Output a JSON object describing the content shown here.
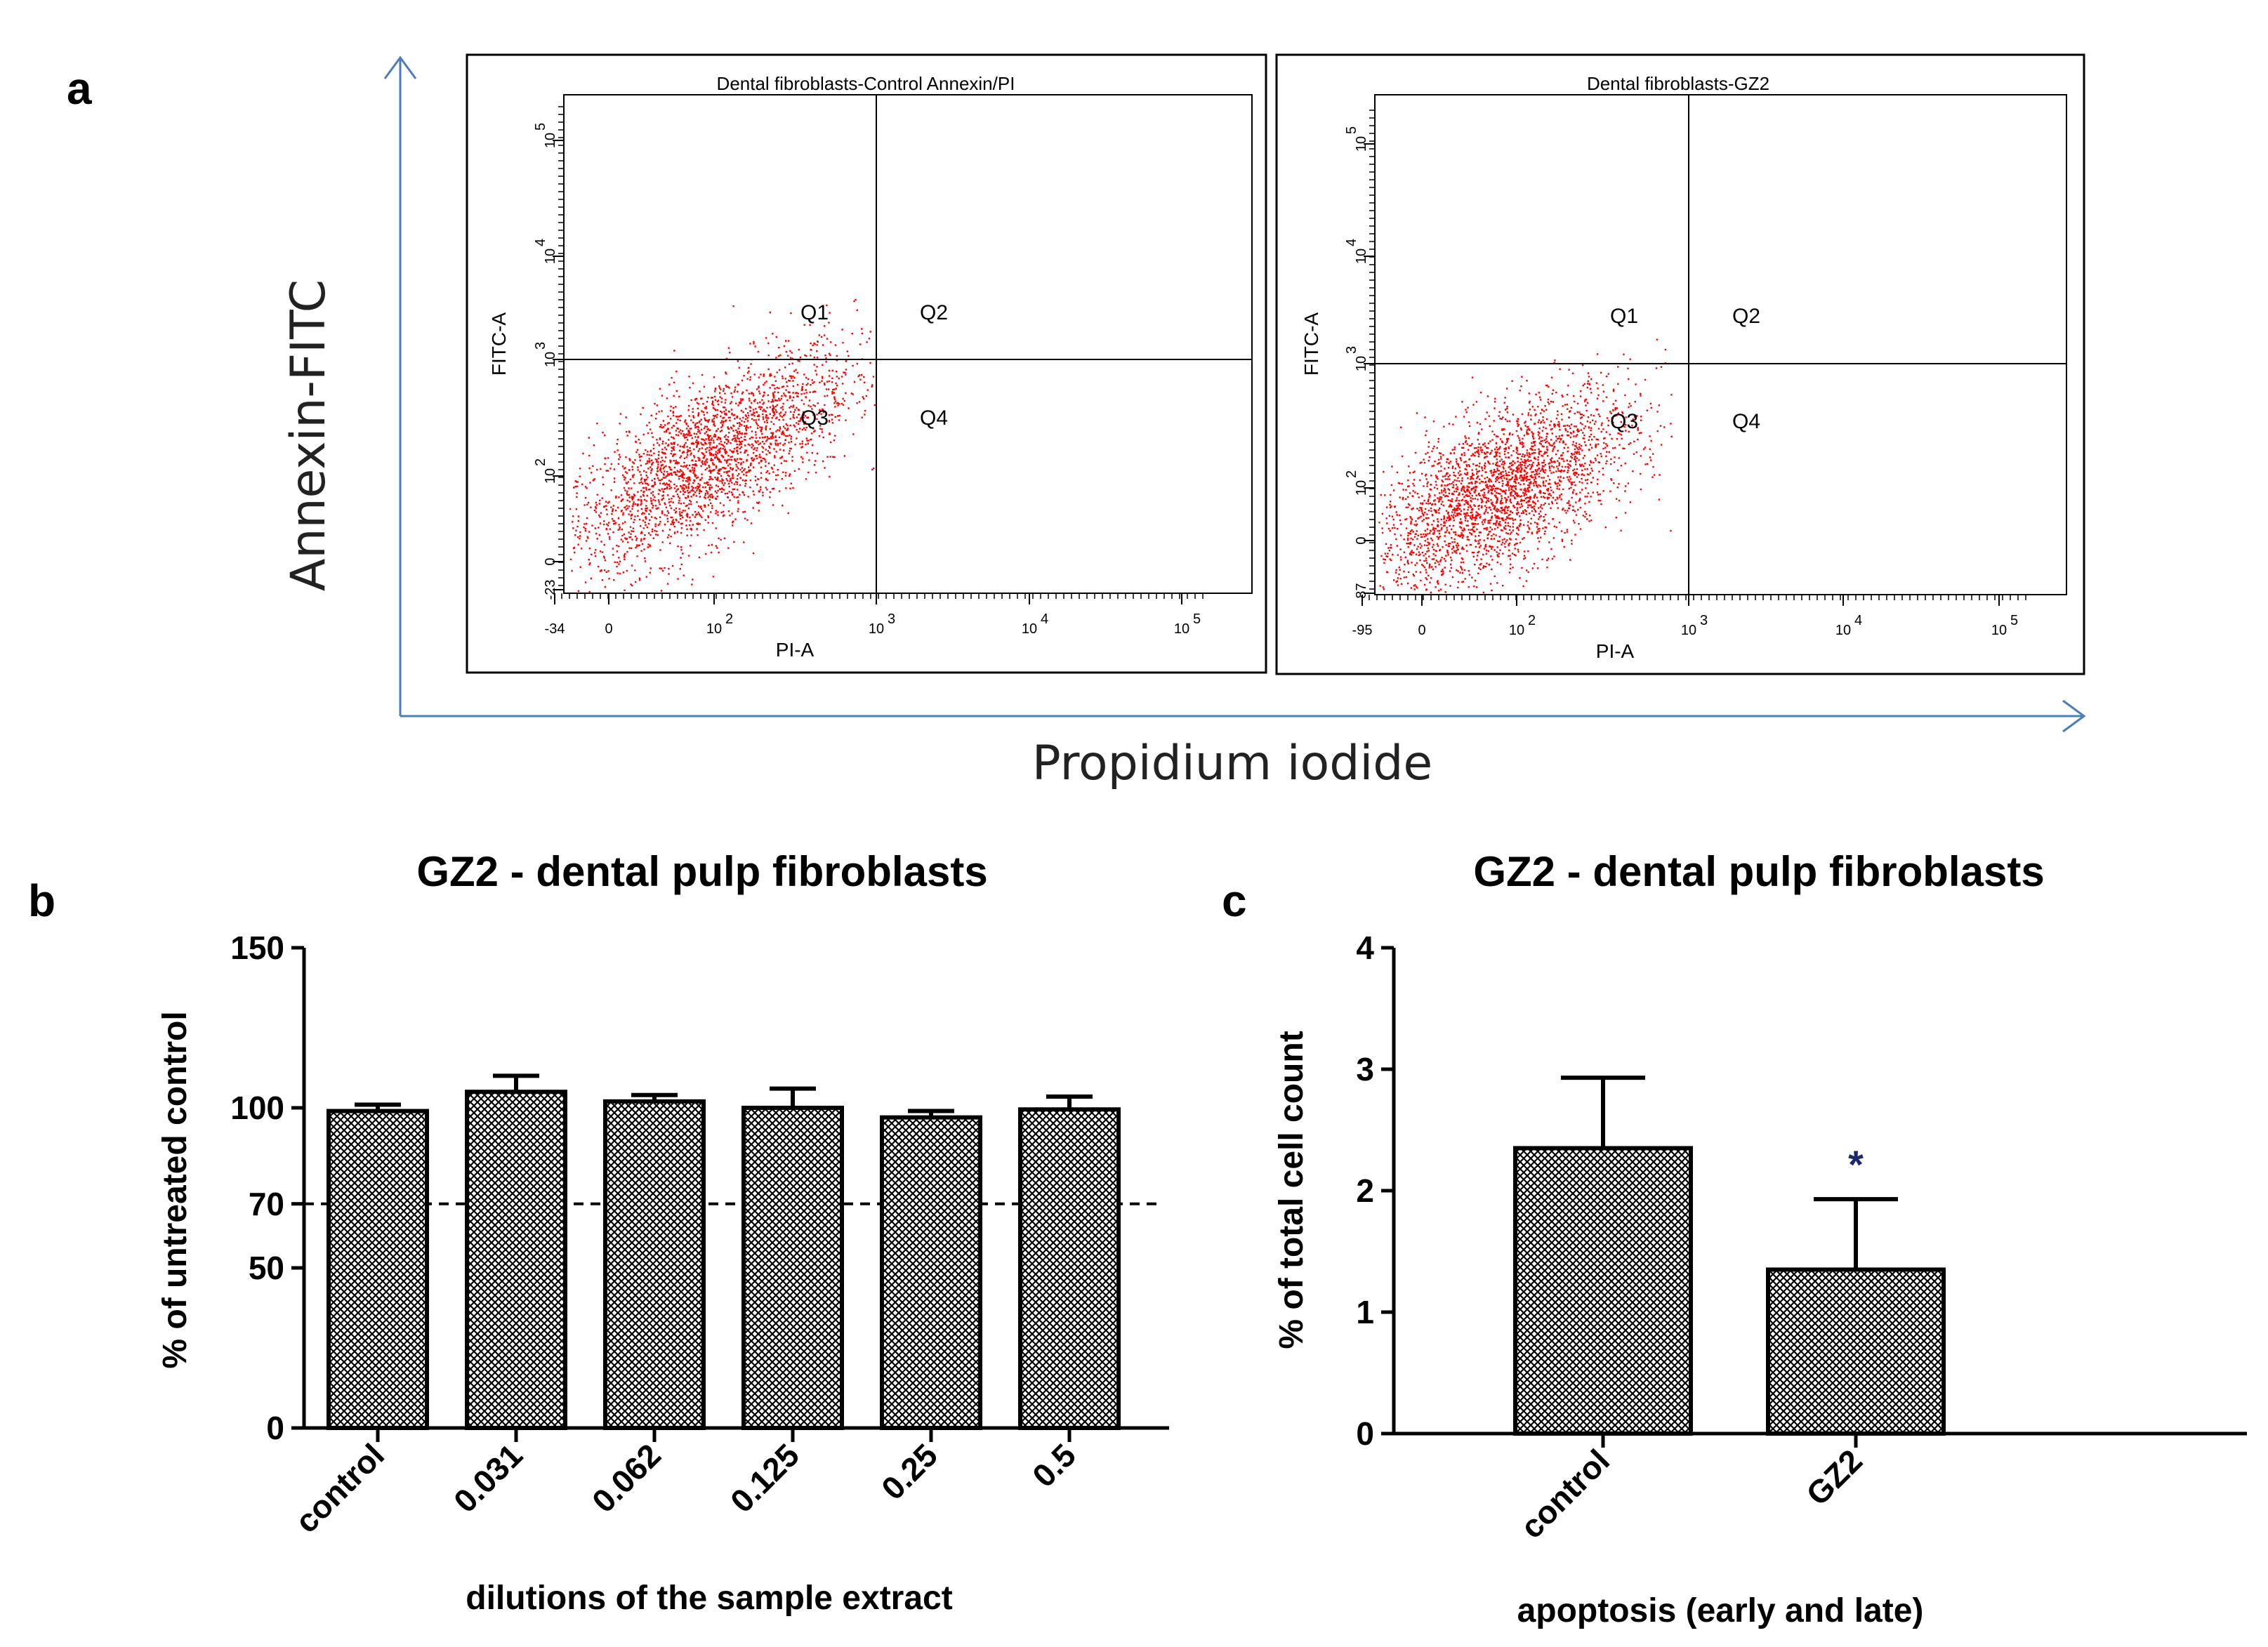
{
  "panel_a": {
    "letter": "a",
    "y_axis_title": "Annexin-FITC",
    "x_axis_title": "Propidium iodide",
    "axis_color": "#4a7ebb",
    "dot_color": "#ff0000",
    "plots": [
      {
        "title": "Dental fibroblasts-Control Annexin/PI",
        "x_label": "PI-A",
        "y_label": "FITC-A",
        "x_ticks": [
          "-34",
          "0",
          "10",
          "10",
          "10",
          "10"
        ],
        "x_tick_exp": [
          "",
          "",
          "2",
          "3",
          "4",
          "5"
        ],
        "y_ticks": [
          "-23",
          "0",
          "10",
          "10",
          "10",
          "10"
        ],
        "y_tick_exp": [
          "",
          "",
          "2",
          "3",
          "4",
          "5"
        ],
        "quadrants": [
          "Q1",
          "Q2",
          "Q3",
          "Q4"
        ]
      },
      {
        "title": "Dental fibroblasts-GZ2",
        "x_label": "PI-A",
        "y_label": "FITC-A",
        "x_ticks": [
          "-95",
          "0",
          "10",
          "10",
          "10",
          "10"
        ],
        "x_tick_exp": [
          "",
          "",
          "2",
          "3",
          "4",
          "5"
        ],
        "y_ticks": [
          "-87",
          "0",
          "10",
          "10",
          "10",
          "10"
        ],
        "y_tick_exp": [
          "",
          "",
          "2",
          "3",
          "4",
          "5"
        ],
        "quadrants": [
          "Q1",
          "Q2",
          "Q3",
          "Q4"
        ]
      }
    ]
  },
  "chart_data": [
    {
      "panel": "b",
      "type": "bar",
      "title": "GZ2 - dental pulp fibroblasts",
      "xlabel": "dilutions of the sample extract",
      "ylabel": "% of untreated control",
      "categories": [
        "control",
        "0.031",
        "0.062",
        "0.125",
        "0.25",
        "0.5"
      ],
      "values": [
        99,
        105,
        102,
        100,
        97,
        99.5
      ],
      "errors": [
        2,
        5,
        2,
        6,
        2,
        4
      ],
      "ylim": [
        0,
        150
      ],
      "yticks": [
        0,
        50,
        70,
        100,
        150
      ],
      "reference_line": 70,
      "fill": "crosshatch"
    },
    {
      "panel": "c",
      "type": "bar",
      "title": "GZ2 - dental pulp fibroblasts",
      "xlabel": "apoptosis (early and late)",
      "ylabel": "% of total cell count",
      "categories": [
        "control",
        "GZ2"
      ],
      "values": [
        2.35,
        1.35
      ],
      "errors": [
        0.58,
        0.58
      ],
      "ylim": [
        0,
        4
      ],
      "yticks": [
        0,
        1,
        2,
        3,
        4
      ],
      "annotations": [
        "",
        "*"
      ],
      "fill": "crosshatch"
    }
  ]
}
